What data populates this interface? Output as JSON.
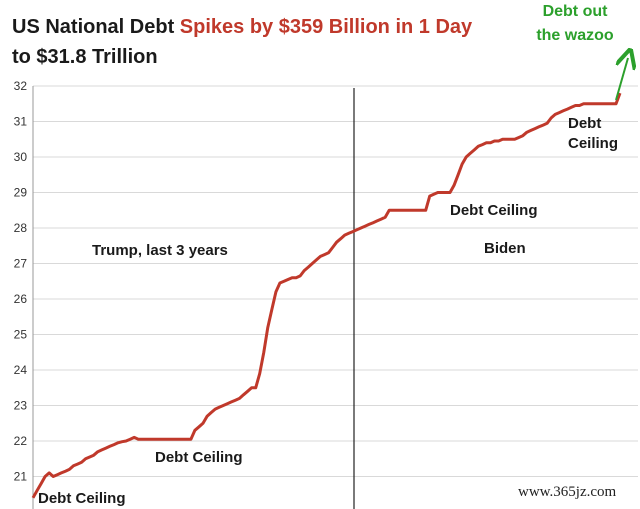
{
  "chart_data": {
    "type": "line",
    "title_part1": "US National Debt ",
    "title_part2": "Spikes by $359 Billion in 1 Day",
    "title_line2": "to $31.8 Trillion",
    "ylim": [
      20,
      32
    ],
    "yticks": [
      "21",
      "22",
      "23",
      "24",
      "25",
      "26",
      "27",
      "28",
      "29",
      "30",
      "31",
      "32"
    ],
    "grid": true,
    "series": [
      {
        "values": [
          20.4,
          20.6,
          20.8,
          21.0,
          21.1,
          21.0,
          21.05,
          21.1,
          21.15,
          21.2,
          21.3,
          21.35,
          21.4,
          21.5,
          21.55,
          21.6,
          21.7,
          21.75,
          21.8,
          21.85,
          21.9,
          21.95,
          21.98,
          22.0,
          22.05,
          22.1,
          22.05,
          22.05,
          22.05,
          22.05,
          22.05,
          22.05,
          22.05,
          22.05,
          22.05,
          22.05,
          22.05,
          22.05,
          22.05,
          22.05,
          22.3,
          22.4,
          22.5,
          22.7,
          22.8,
          22.9,
          22.95,
          23.0,
          23.05,
          23.1,
          23.15,
          23.2,
          23.3,
          23.4,
          23.5,
          23.5,
          23.9,
          24.5,
          25.2,
          25.7,
          26.2,
          26.45,
          26.5,
          26.55,
          26.6,
          26.6,
          26.65,
          26.8,
          26.9,
          27.0,
          27.1,
          27.2,
          27.25,
          27.3,
          27.45,
          27.6,
          27.7,
          27.8,
          27.85,
          27.9,
          27.95,
          28.0,
          28.05,
          28.1,
          28.15,
          28.2,
          28.25,
          28.3,
          28.5,
          28.5,
          28.5,
          28.5,
          28.5,
          28.5,
          28.5,
          28.5,
          28.5,
          28.5,
          28.9,
          28.95,
          29.0,
          29.0,
          29.0,
          29.0,
          29.2,
          29.5,
          29.8,
          30.0,
          30.1,
          30.2,
          30.3,
          30.35,
          30.4,
          30.4,
          30.45,
          30.45,
          30.5,
          30.5,
          30.5,
          30.5,
          30.55,
          30.6,
          30.7,
          30.75,
          30.8,
          30.85,
          30.9,
          30.95,
          31.1,
          31.2,
          31.25,
          31.3,
          31.35,
          31.4,
          31.45,
          31.45,
          31.5,
          31.5,
          31.5,
          31.5,
          31.5,
          31.5,
          31.5,
          31.5,
          31.5,
          31.8
        ]
      }
    ],
    "annotations": {
      "debt_ceiling_1": "Debt Ceiling",
      "debt_ceiling_2": "Debt Ceiling",
      "debt_ceiling_3": "Debt Ceiling",
      "debt_ceiling_4a": "Debt",
      "debt_ceiling_4b": "Ceiling",
      "trump": "Trump, last 3 years",
      "biden": "Biden",
      "wazoo_line1": "Debt out",
      "wazoo_line2": "the wazoo"
    },
    "line_color": "#c0392b",
    "watermark": "www.365jz.com"
  }
}
